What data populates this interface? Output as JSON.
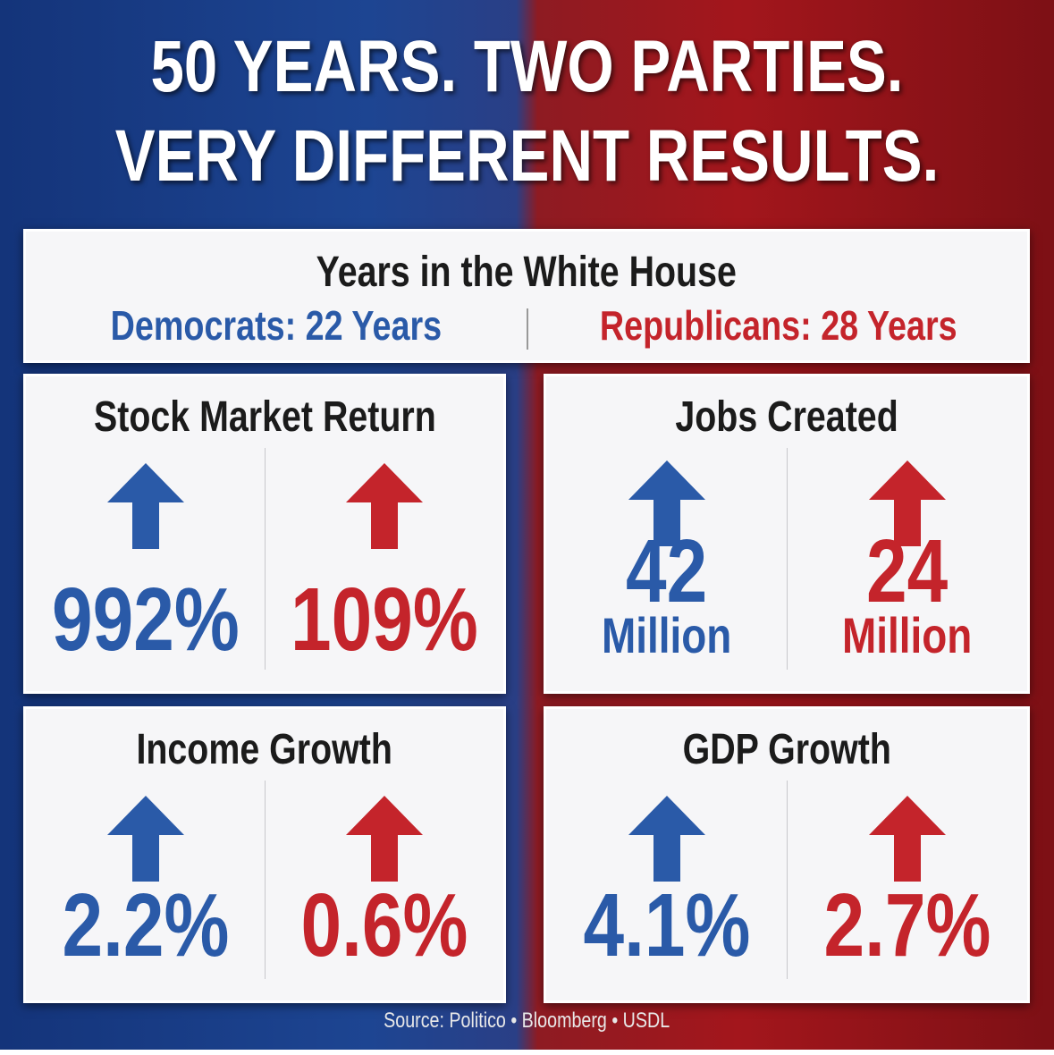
{
  "title": [
    "50 YEARS. TWO PARTIES.",
    "VERY DIFFERENT RESULTS."
  ],
  "white_house": {
    "heading": "Years in the White House",
    "democrats": "Democrats: 22 Years",
    "republicans": "Republicans: 28 Years"
  },
  "panels": [
    {
      "title": "Stock Market Return",
      "democrats": {
        "value": "992%"
      },
      "republicans": {
        "value": "109%"
      }
    },
    {
      "title": "Jobs Created",
      "democrats": {
        "value": "42",
        "unit": "Million"
      },
      "republicans": {
        "value": "24",
        "unit": "Million"
      }
    },
    {
      "title": "Income Growth",
      "democrats": {
        "value": "2.2%"
      },
      "republicans": {
        "value": "0.6%"
      }
    },
    {
      "title": "GDP Growth",
      "democrats": {
        "value": "4.1%"
      },
      "republicans": {
        "value": "2.7%"
      }
    }
  ],
  "source": "Source: Politico • Bloomberg • USDL"
}
